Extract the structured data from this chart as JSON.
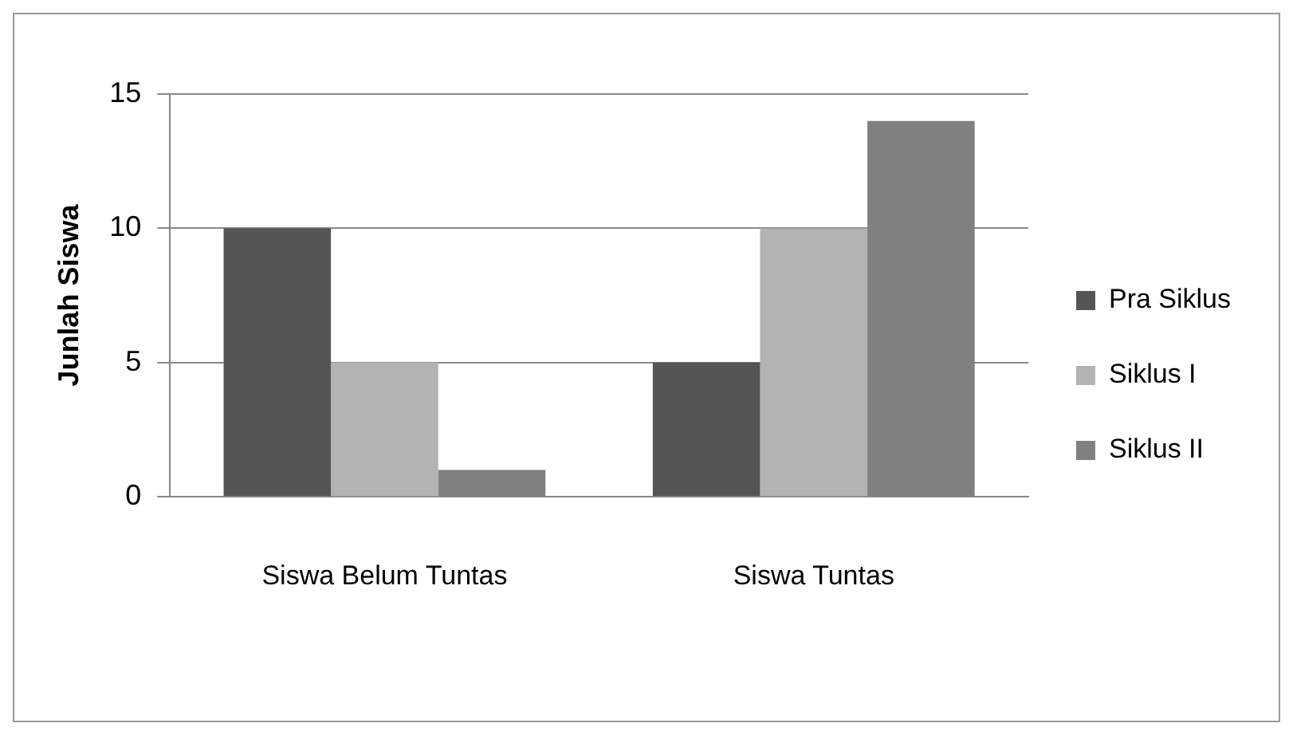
{
  "chart_data": {
    "type": "bar",
    "ylabel": "Junlah Siswa",
    "categories": [
      "Siswa Belum Tuntas",
      "Siswa Tuntas"
    ],
    "series": [
      {
        "name": "Pra Siklus",
        "color": "#555555",
        "values": [
          10,
          5
        ]
      },
      {
        "name": "Siklus I",
        "color": "#b3b3b3",
        "values": [
          5,
          10
        ]
      },
      {
        "name": "Siklus II",
        "color": "#808080",
        "values": [
          1,
          14
        ]
      }
    ],
    "ylim": [
      0,
      15
    ],
    "yticks": [
      0,
      5,
      10,
      15
    ],
    "grid": "y",
    "legend": "right"
  }
}
